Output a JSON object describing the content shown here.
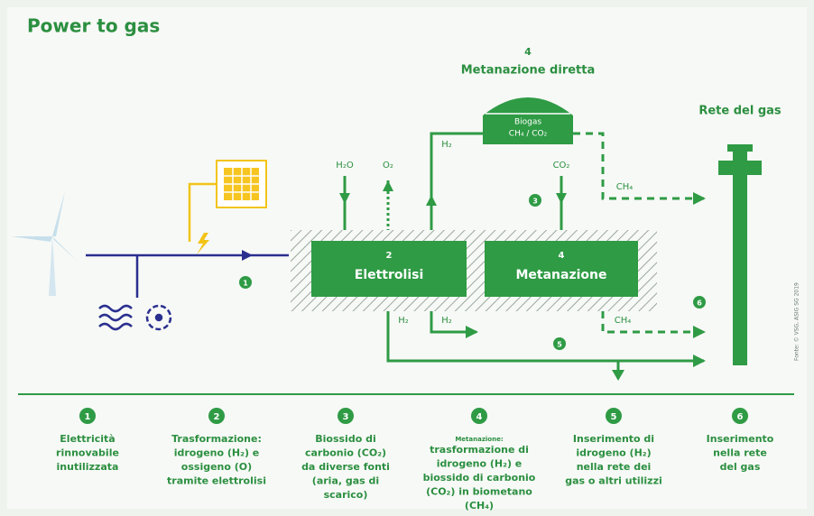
{
  "header": {
    "title": "Power to gas"
  },
  "diagram": {
    "direct": {
      "number": "4",
      "label": "Metanazione diretta"
    },
    "grid": "Rete del gas",
    "biogas": {
      "label": "Biogas",
      "formula": "CH₄ / CO₂"
    },
    "labels": {
      "h2o": "H₂O",
      "o2": "O₂",
      "h2_up": "H₂",
      "co2": "CO₂",
      "ch4_top": "CH₄",
      "h2_low1": "H₂",
      "h2_low2": "H₂",
      "ch4_low": "CH₄"
    },
    "boxes": [
      {
        "number": "2",
        "label": "Elettrolisi"
      },
      {
        "number": "4",
        "label": "Metanazione"
      }
    ],
    "markers": {
      "electricity": "1",
      "co2": "3",
      "hydrogen": "5",
      "methane": "6"
    },
    "source": "Fonte: © VSG, ASIG SG 2019"
  },
  "legend": [
    {
      "number": "1",
      "lines": [
        "Elettricità",
        "rinnovabile",
        "inutilizzata"
      ]
    },
    {
      "number": "2",
      "lines": [
        "Trasformazione:",
        "idrogeno (H₂) e",
        "ossigeno (O)",
        "tramite elettrolisi"
      ]
    },
    {
      "number": "3",
      "lines": [
        "Biossido di",
        "carbonio (CO₂)",
        "da diverse fonti",
        "(aria, gas di",
        "scarico)"
      ]
    },
    {
      "number": "4",
      "heading": "Metanazione:",
      "lines": [
        "trasformazione di",
        "idrogeno (H₂) e",
        "biossido di carbonio",
        "(CO₂) in biometano",
        "(CH₄)"
      ]
    },
    {
      "number": "5",
      "lines": [
        "Inserimento di",
        "idrogeno (H₂)",
        "nella rete dei",
        "gas o altri utilizzi"
      ]
    },
    {
      "number": "6",
      "lines": [
        "Inserimento",
        "nella rete",
        "del gas"
      ]
    }
  ]
}
